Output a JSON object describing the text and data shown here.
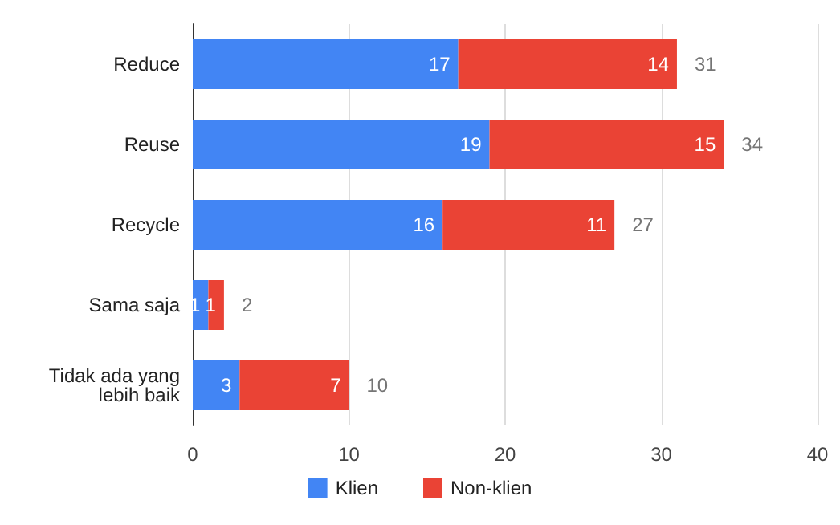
{
  "chart_data": {
    "type": "bar",
    "orientation": "horizontal",
    "stacked": true,
    "categories": [
      "Reduce",
      "Reuse",
      "Recycle",
      "Sama saja",
      "Tidak ada yang lebih baik"
    ],
    "series": [
      {
        "name": "Klien",
        "color": "#4285f4",
        "values": [
          17,
          19,
          16,
          1,
          3
        ]
      },
      {
        "name": "Non-klien",
        "color": "#ea4335",
        "values": [
          14,
          15,
          11,
          1,
          7
        ]
      }
    ],
    "xlim": [
      0,
      40
    ],
    "xticks": [
      0,
      10,
      20,
      30,
      40
    ],
    "grid": "x",
    "legend": "bottom",
    "data_labels": true,
    "totals": [
      "31",
      "34",
      "27",
      "2",
      "10"
    ]
  }
}
